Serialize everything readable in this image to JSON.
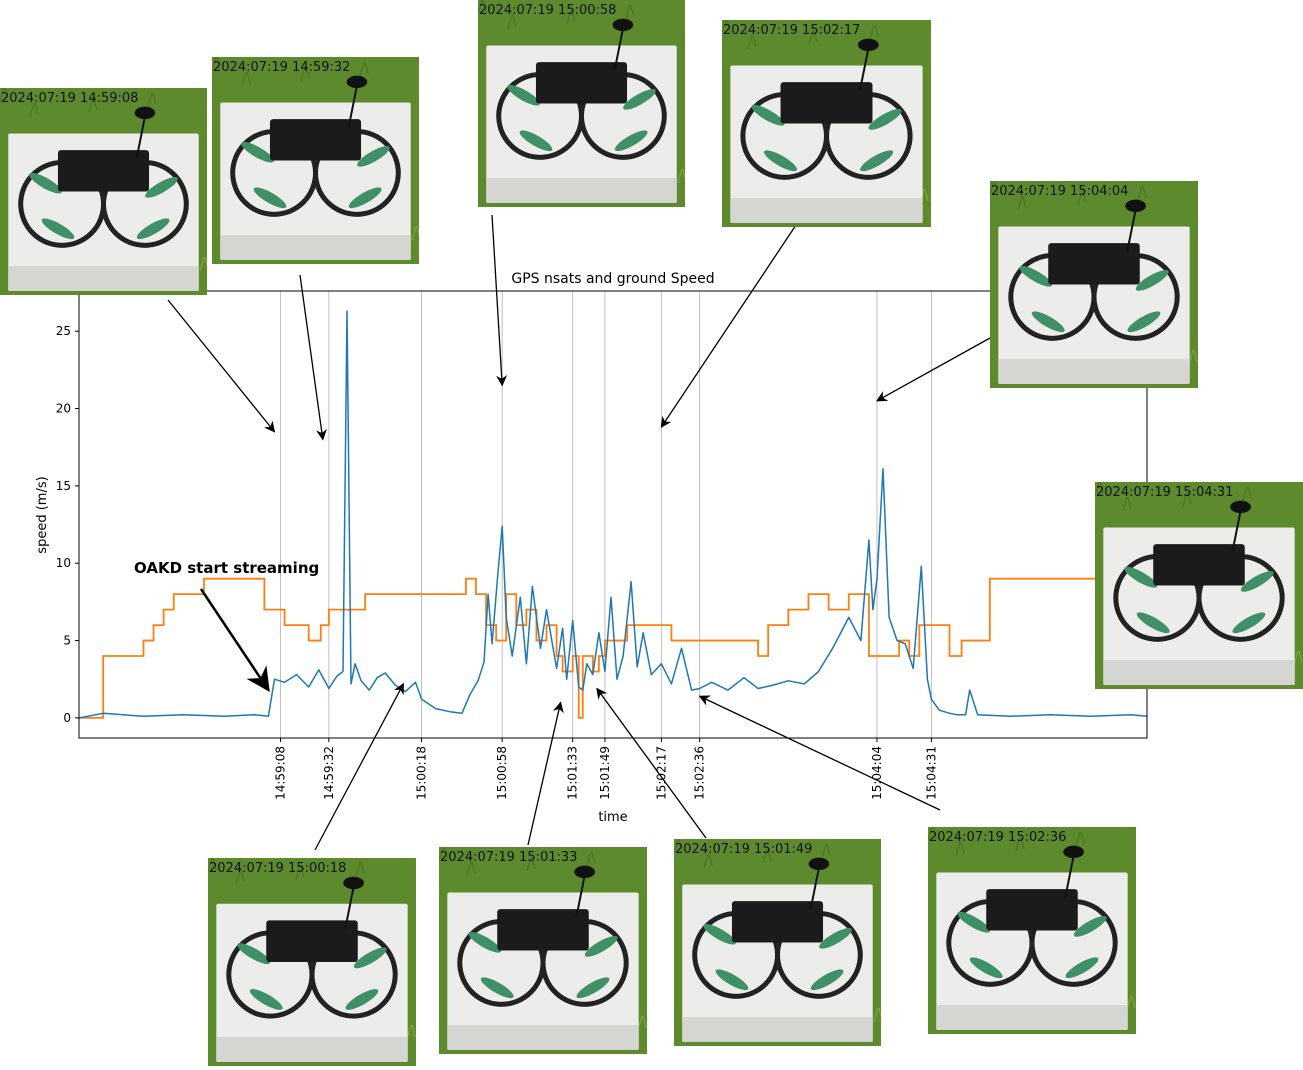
{
  "chart_data": {
    "type": "line",
    "title": "GPS nsats and ground Speed",
    "xlabel": "time",
    "ylabel": "speed (m/s)",
    "x_range": [
      "14:57:28",
      "15:06:18"
    ],
    "ylim": [
      -1.3,
      27.6
    ],
    "yticks": [
      0,
      5,
      10,
      15,
      20,
      25
    ],
    "xticks": [
      "14:59:08",
      "14:59:32",
      "15:00:18",
      "15:00:58",
      "15:01:33",
      "15:01:49",
      "15:02:17",
      "15:02:36",
      "15:04:04",
      "15:04:31"
    ],
    "vertical_gridlines": "at each x tick",
    "legend": "none",
    "series": [
      {
        "color": "#1f77b4",
        "x": [
          "14:57:28",
          "14:57:40",
          "14:57:50",
          "14:58:00",
          "14:58:20",
          "14:58:40",
          "14:58:55",
          "14:59:02",
          "14:59:05",
          "14:59:10",
          "14:59:16",
          "14:59:22",
          "14:59:27",
          "14:59:32",
          "14:59:36",
          "14:59:39",
          "14:59:41",
          "14:59:43",
          "14:59:45",
          "14:59:48",
          "14:59:52",
          "14:59:56",
          "15:00:00",
          "15:00:05",
          "15:00:10",
          "15:00:15",
          "15:00:18",
          "15:00:25",
          "15:00:32",
          "15:00:38",
          "15:00:42",
          "15:00:46",
          "15:00:49",
          "15:00:51",
          "15:00:53",
          "15:00:56",
          "15:00:58",
          "15:01:00",
          "15:01:03",
          "15:01:07",
          "15:01:10",
          "15:01:13",
          "15:01:17",
          "15:01:20",
          "15:01:25",
          "15:01:28",
          "15:01:30",
          "15:01:33",
          "15:01:36",
          "15:01:38",
          "15:01:40",
          "15:01:43",
          "15:01:46",
          "15:01:49",
          "15:01:52",
          "15:01:55",
          "15:01:58",
          "15:02:02",
          "15:02:05",
          "15:02:08",
          "15:02:12",
          "15:02:17",
          "15:02:22",
          "15:02:27",
          "15:02:32",
          "15:02:36",
          "15:02:42",
          "15:02:50",
          "15:02:58",
          "15:03:05",
          "15:03:12",
          "15:03:20",
          "15:03:28",
          "15:03:35",
          "15:03:42",
          "15:03:50",
          "15:03:56",
          "15:04:00",
          "15:04:02",
          "15:04:04",
          "15:04:07",
          "15:04:10",
          "15:04:14",
          "15:04:18",
          "15:04:22",
          "15:04:26",
          "15:04:29",
          "15:04:31",
          "15:04:35",
          "15:04:40",
          "15:04:44",
          "15:04:48",
          "15:04:50",
          "15:04:54",
          "15:05:10",
          "15:05:30",
          "15:05:50",
          "15:06:10",
          "15:06:18"
        ],
        "values": [
          0,
          0.3,
          0.2,
          0.1,
          0.2,
          0.1,
          0.2,
          0.1,
          2.5,
          2.3,
          2.8,
          2.0,
          3.1,
          1.9,
          2.7,
          3.0,
          26.3,
          2.2,
          3.5,
          2.4,
          1.8,
          2.6,
          2.9,
          2.1,
          1.7,
          2.3,
          1.2,
          0.6,
          0.4,
          0.3,
          1.5,
          2.4,
          3.6,
          8.0,
          4.8,
          9.5,
          12.4,
          6.5,
          4.0,
          7.8,
          3.5,
          8.5,
          4.5,
          7.0,
          3.2,
          5.8,
          2.5,
          6.3,
          2.0,
          1.8,
          3.5,
          2.8,
          5.5,
          3.0,
          7.8,
          2.5,
          4.0,
          8.8,
          3.3,
          5.5,
          2.8,
          3.5,
          2.2,
          4.5,
          1.8,
          1.9,
          2.3,
          1.8,
          2.6,
          1.9,
          2.1,
          2.4,
          2.2,
          3.0,
          4.5,
          6.5,
          5.0,
          11.5,
          7.0,
          9.0,
          16.1,
          6.5,
          5.0,
          4.8,
          3.2,
          9.8,
          2.5,
          1.2,
          0.5,
          0.3,
          0.2,
          0.2,
          1.8,
          0.2,
          0.1,
          0.2,
          0.1,
          0.2,
          0.1
        ]
      },
      {
        "color": "#ff7f0e",
        "x": [
          "14:57:28",
          "14:57:35",
          "14:57:40",
          "14:57:55",
          "14:58:00",
          "14:58:05",
          "14:58:10",
          "14:58:15",
          "14:58:30",
          "14:58:50",
          "14:59:00",
          "14:59:05",
          "14:59:10",
          "14:59:22",
          "14:59:28",
          "14:59:32",
          "14:59:40",
          "14:59:50",
          "15:00:00",
          "15:00:18",
          "15:00:35",
          "15:00:40",
          "15:00:45",
          "15:00:50",
          "15:00:55",
          "15:01:00",
          "15:01:05",
          "15:01:10",
          "15:01:15",
          "15:01:20",
          "15:01:25",
          "15:01:28",
          "15:01:33",
          "15:01:36",
          "15:01:38",
          "15:01:43",
          "15:01:46",
          "15:01:49",
          "15:01:55",
          "15:02:00",
          "15:02:17",
          "15:02:22",
          "15:02:30",
          "15:02:40",
          "15:02:50",
          "15:03:00",
          "15:03:05",
          "15:03:10",
          "15:03:20",
          "15:03:30",
          "15:03:40",
          "15:03:50",
          "15:04:00",
          "15:04:10",
          "15:04:15",
          "15:04:20",
          "15:04:25",
          "15:04:31",
          "15:04:40",
          "15:04:46",
          "15:05:00",
          "15:05:50",
          "15:05:55",
          "15:06:00",
          "15:06:18"
        ],
        "values": [
          0,
          0,
          4,
          4,
          5,
          6,
          7,
          8,
          9,
          9,
          7,
          7,
          6,
          5,
          6,
          7,
          7,
          8,
          8,
          8,
          8,
          9,
          8,
          6,
          5,
          8,
          6,
          7,
          5,
          6,
          4,
          3,
          4,
          0,
          4,
          3,
          4,
          5,
          5,
          6,
          6,
          5,
          5,
          5,
          5,
          5,
          4,
          6,
          7,
          8,
          7,
          8,
          4,
          4,
          5,
          4,
          6,
          6,
          4,
          5,
          9,
          9,
          10,
          9,
          9
        ]
      }
    ]
  },
  "annotation": {
    "text": "OAKD start streaming",
    "target": {
      "time": "14:59:02",
      "value": 1.8
    }
  },
  "photos": [
    {
      "timestamp": "2024:07:19 14:59:08",
      "arrow_target": {
        "time": "14:59:05",
        "value": 18.5
      }
    },
    {
      "timestamp": "2024:07:19 14:59:32",
      "arrow_target": {
        "time": "14:59:29",
        "value": 18.0
      }
    },
    {
      "timestamp": "2024:07:19 15:00:58",
      "arrow_target": {
        "time": "15:00:58",
        "value": 21.5
      }
    },
    {
      "timestamp": "2024:07:19 15:02:17",
      "arrow_target": {
        "time": "15:02:17",
        "value": 18.8
      }
    },
    {
      "timestamp": "2024:07:19 15:04:04",
      "arrow_target": {
        "time": "15:04:04",
        "value": 20.5
      }
    },
    {
      "timestamp": "2024:07:19 15:04:31",
      "arrow_target": null
    },
    {
      "timestamp": "2024:07:19 15:00:18",
      "arrow_target": {
        "time": "15:00:09",
        "value": 2.2
      }
    },
    {
      "timestamp": "2024:07:19 15:01:33",
      "arrow_target": {
        "time": "15:01:27",
        "value": 1.0
      }
    },
    {
      "timestamp": "2024:07:19 15:01:49",
      "arrow_target": {
        "time": "15:01:45",
        "value": 1.9
      }
    },
    {
      "timestamp": "2024:07:19 15:02:36",
      "arrow_target": {
        "time": "15:02:36",
        "value": 1.4
      }
    }
  ],
  "colors": {
    "speed": "#1f77b4",
    "nsats": "#ff7f0e",
    "grass": "#5e8a2e",
    "box": "#ececea",
    "drone": "#1b1b1b",
    "prop": "#3f8f67"
  }
}
